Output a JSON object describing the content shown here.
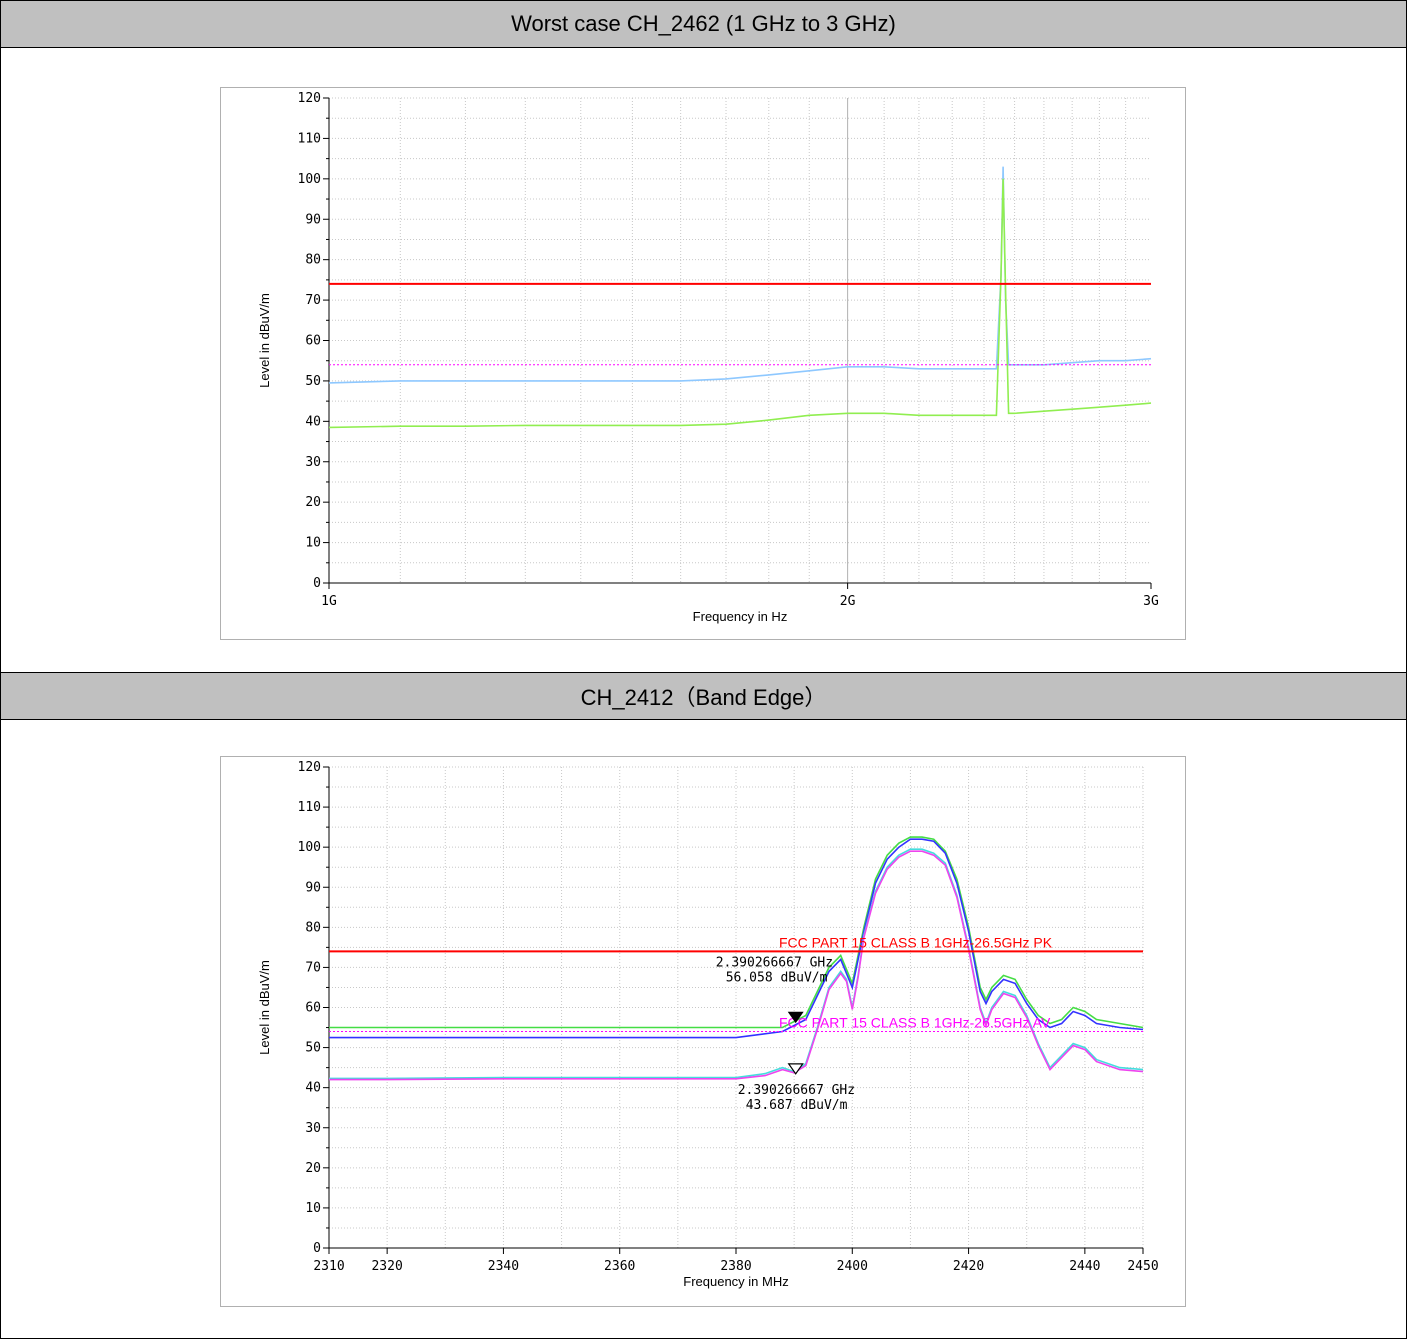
{
  "sections": [
    {
      "title": "Worst case CH_2462 (1 GHz to 3 GHz)"
    },
    {
      "title": "CH_2412（Band Edge）"
    }
  ],
  "chart_data": [
    {
      "type": "line",
      "xlabel": "Frequency in Hz",
      "ylabel": "Level in dBuV/m",
      "ylim": [
        0,
        120
      ],
      "yticks": [
        0,
        10,
        20,
        30,
        40,
        50,
        60,
        70,
        80,
        90,
        100,
        110,
        120
      ],
      "xlim": [
        1,
        3
      ],
      "x_scale": "log",
      "xticks": [
        {
          "value": 1,
          "label": "1G"
        },
        {
          "value": 2,
          "label": "2G"
        },
        {
          "value": 3,
          "label": "3G"
        }
      ],
      "grid": true,
      "limits": [
        {
          "label": "",
          "value": 74,
          "color": "#ff0000",
          "style": "solid"
        },
        {
          "label": "",
          "value": 54,
          "color": "#ff00ff",
          "style": "dashed"
        }
      ],
      "series": [
        {
          "name": "",
          "color": "#8ec8ff",
          "x": [
            1.0,
            1.1,
            1.2,
            1.3,
            1.4,
            1.5,
            1.6,
            1.7,
            1.8,
            1.9,
            2.0,
            2.1,
            2.2,
            2.3,
            2.4,
            2.44,
            2.455,
            2.462,
            2.47,
            2.48,
            2.5,
            2.6,
            2.7,
            2.8,
            2.9,
            3.0
          ],
          "y": [
            49.5,
            50,
            50,
            50,
            50,
            50,
            50,
            50.5,
            51.5,
            52.5,
            53.5,
            53.5,
            53,
            53,
            53,
            53,
            76,
            103,
            70,
            54,
            54,
            54,
            54.5,
            55,
            55,
            55.5
          ]
        },
        {
          "name": "",
          "color": "#90ee50",
          "x": [
            1.0,
            1.1,
            1.2,
            1.3,
            1.4,
            1.5,
            1.6,
            1.7,
            1.8,
            1.9,
            2.0,
            2.1,
            2.2,
            2.3,
            2.4,
            2.44,
            2.455,
            2.462,
            2.47,
            2.48,
            2.5,
            2.6,
            2.7,
            2.8,
            2.9,
            3.0
          ],
          "y": [
            38.5,
            38.8,
            38.8,
            39,
            39,
            39,
            39,
            39.3,
            40.3,
            41.5,
            42,
            42,
            41.5,
            41.5,
            41.5,
            41.5,
            76,
            100,
            72,
            42,
            42,
            42.5,
            43,
            43.5,
            44,
            44.5
          ]
        }
      ]
    },
    {
      "type": "line",
      "xlabel": "Frequency in MHz",
      "ylabel": "Level in dBuV/m",
      "ylim": [
        0,
        120
      ],
      "yticks": [
        0,
        10,
        20,
        30,
        40,
        50,
        60,
        70,
        80,
        90,
        100,
        110,
        120
      ],
      "xlim": [
        2310,
        2450
      ],
      "xticks": [
        2310,
        2320,
        2340,
        2360,
        2380,
        2400,
        2420,
        2440,
        2450
      ],
      "grid": true,
      "limits": [
        {
          "label": "FCC PART 15 CLASS B 1GHz-26.5GHz PK",
          "value": 74,
          "color": "#ff0000",
          "style": "solid"
        },
        {
          "label": "FCC PART 15 CLASS B 1GHz-26.5GHz AV",
          "value": 54,
          "color": "#ff00ff",
          "style": "dashed"
        }
      ],
      "markers": [
        {
          "x": 2390.266667,
          "y": 56.058,
          "filled": true,
          "label_freq": "2.390266667 GHz",
          "label_level": "56.058 dBuV/m"
        },
        {
          "x": 2390.266667,
          "y": 43.687,
          "filled": false,
          "label_freq": "2.390266667 GHz",
          "label_level": "43.687 dBuV/m"
        }
      ],
      "series": [
        {
          "name": "",
          "color": "#44dd44",
          "x": [
            2310,
            2320,
            2340,
            2360,
            2380,
            2388,
            2392,
            2396,
            2398,
            2400,
            2402,
            2404,
            2406,
            2408,
            2410,
            2412,
            2414,
            2416,
            2418,
            2420,
            2422,
            2423,
            2424,
            2426,
            2428,
            2430,
            2432,
            2434,
            2436,
            2438,
            2440,
            2442,
            2446,
            2450
          ],
          "y": [
            55,
            55,
            55,
            55,
            55,
            55,
            58,
            70,
            73,
            66,
            80,
            92,
            98,
            101,
            102.5,
            102.5,
            102,
            99,
            92,
            80,
            65,
            62,
            65,
            68,
            67,
            62,
            58,
            56,
            57,
            60,
            59,
            57,
            56,
            55
          ]
        },
        {
          "name": "",
          "color": "#3333ff",
          "x": [
            2310,
            2320,
            2340,
            2360,
            2380,
            2388,
            2392,
            2396,
            2398,
            2400,
            2402,
            2404,
            2406,
            2408,
            2410,
            2412,
            2414,
            2416,
            2418,
            2420,
            2422,
            2423,
            2424,
            2426,
            2428,
            2430,
            2432,
            2434,
            2436,
            2438,
            2440,
            2442,
            2446,
            2450
          ],
          "y": [
            52.5,
            52.5,
            52.5,
            52.5,
            52.5,
            54,
            57,
            69,
            72,
            65,
            79,
            91,
            97,
            100,
            102,
            102,
            101.5,
            98.5,
            91,
            79,
            64,
            61,
            64,
            67,
            66,
            61,
            57,
            55,
            56,
            59,
            58,
            56,
            55,
            54.5
          ]
        },
        {
          "name": "",
          "color": "#44dddd",
          "x": [
            2310,
            2320,
            2340,
            2360,
            2380,
            2385,
            2388,
            2390,
            2392,
            2394,
            2396,
            2398,
            2399,
            2400,
            2401,
            2402,
            2404,
            2406,
            2408,
            2410,
            2412,
            2414,
            2416,
            2418,
            2420,
            2422,
            2423,
            2424,
            2426,
            2428,
            2430,
            2432,
            2434,
            2436,
            2438,
            2440,
            2442,
            2446,
            2450
          ],
          "y": [
            42.3,
            42.3,
            42.5,
            42.5,
            42.5,
            43.5,
            45,
            44,
            46,
            55,
            65,
            69,
            67,
            60,
            68,
            78,
            89,
            95,
            98,
            99.5,
            99.5,
            98.5,
            96,
            88,
            75,
            60,
            56,
            60,
            64,
            63,
            58,
            51,
            45,
            48,
            51,
            50,
            47,
            45,
            44.5
          ]
        },
        {
          "name": "",
          "color": "#ee44ee",
          "x": [
            2310,
            2320,
            2340,
            2360,
            2380,
            2385,
            2388,
            2390,
            2392,
            2394,
            2396,
            2398,
            2399,
            2400,
            2401,
            2402,
            2404,
            2406,
            2408,
            2410,
            2412,
            2414,
            2416,
            2418,
            2420,
            2422,
            2423,
            2424,
            2426,
            2428,
            2430,
            2432,
            2434,
            2436,
            2438,
            2440,
            2442,
            2446,
            2450
          ],
          "y": [
            42,
            42,
            42.2,
            42.2,
            42.2,
            43,
            44.5,
            43.7,
            45.5,
            54.5,
            64.5,
            68.5,
            66.5,
            59.5,
            67.5,
            77.5,
            88.5,
            94.5,
            97.5,
            99,
            99,
            98,
            95.5,
            87.5,
            74.5,
            59.5,
            55.5,
            59.5,
            63.5,
            62.5,
            57.5,
            50.5,
            44.5,
            47.5,
            50.5,
            49.5,
            46.5,
            44.5,
            44
          ]
        }
      ]
    }
  ]
}
